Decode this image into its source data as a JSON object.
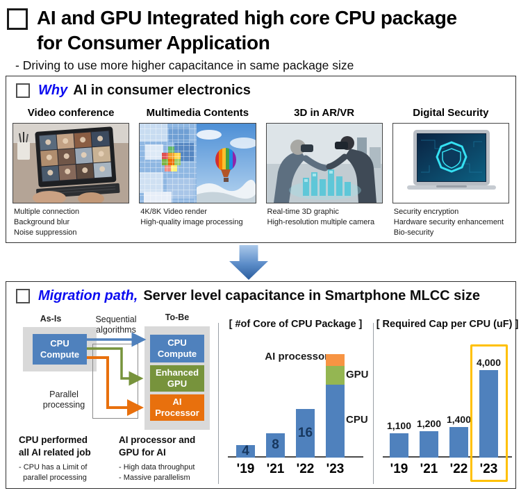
{
  "slide": {
    "title_lines": [
      "AI and GPU Integrated high core CPU package",
      "for Consumer Application"
    ],
    "subtitle": "- Driving to use more higher capacitance in same package size"
  },
  "colors": {
    "accent_blue": "#4f81bd",
    "accent_green": "#77933c",
    "accent_orange": "#e8700d",
    "chart_green": "#94b652",
    "chart_orange": "#f79443",
    "highlight_yellow": "#ffc000",
    "heading_blue": "#0b0bf0"
  },
  "why": {
    "heading_em": "Why",
    "heading_rest": "AI in consumer electronics",
    "columns": [
      {
        "title": "Video conference",
        "bullets": [
          "Multiple connection",
          "Background blur",
          "Noise suppression"
        ]
      },
      {
        "title": "Multimedia Contents",
        "bullets": [
          "4K/8K Video render",
          "High-quality image processing"
        ]
      },
      {
        "title": "3D in AR/VR",
        "bullets": [
          "Real-time 3D graphic",
          "High-resolution multiple camera"
        ]
      },
      {
        "title": "Digital Security",
        "bullets": [
          "Security encryption",
          "Hardware security enhancement",
          "Bio-security"
        ]
      }
    ]
  },
  "migration": {
    "heading_em": "Migration path,",
    "heading_rest": "Server level capacitance in Smartphone MLCC size",
    "diagram": {
      "as_is": "As-Is",
      "to_be": "To-Be",
      "sequential_lines": [
        "Sequential",
        "algorithms"
      ],
      "parallel_lines": [
        "Parallel",
        "processing"
      ],
      "as_is_box": {
        "label": "CPU Compute",
        "color": "#4f81bd"
      },
      "to_be_boxes": [
        {
          "label": "CPU Compute",
          "color": "#4f81bd"
        },
        {
          "label": "Enhanced GPU",
          "color": "#77933c"
        },
        {
          "label": "AI Processor",
          "color": "#e8700d"
        }
      ],
      "notes": [
        {
          "title_lines": [
            "CPU performed",
            "all AI related job"
          ],
          "bullet_lines": [
            "- CPU has a Limit of",
            "  parallel processing"
          ]
        },
        {
          "title_lines": [
            "AI processor and",
            "GPU for AI"
          ],
          "bullet_lines": [
            "- High data throughput",
            "- Massive parallelism"
          ]
        }
      ]
    }
  },
  "chart_data": [
    {
      "type": "bar",
      "stacked": true,
      "title": "[ #of Core of CPU Package ]",
      "categories": [
        "'19",
        "'21",
        "'22",
        "'23"
      ],
      "series": [
        {
          "name": "CPU",
          "color": "#4f81bd",
          "values": [
            4,
            8,
            16,
            24
          ]
        },
        {
          "name": "GPU",
          "color": "#94b652",
          "values": [
            0,
            0,
            0,
            6
          ]
        },
        {
          "name": "AI processor",
          "color": "#f79443",
          "values": [
            0,
            0,
            0,
            4
          ]
        }
      ],
      "bar_value_labels": [
        "4",
        "8",
        "16",
        ""
      ],
      "ylim": [
        0,
        36
      ],
      "legend_position": "annotations-beside-stacked-bar",
      "grid": false
    },
    {
      "type": "bar",
      "stacked": false,
      "title": "[ Required Cap per CPU (uF) ]",
      "categories": [
        "'19",
        "'21",
        "'22",
        "'23"
      ],
      "series": [
        {
          "color": "#4f81bd",
          "values": [
            1100,
            1200,
            1400,
            4000
          ]
        }
      ],
      "bar_value_labels": [
        "1,100",
        "1,200",
        "1,400",
        "4,000"
      ],
      "ylim": [
        0,
        5000
      ],
      "highlight": {
        "category": "'23",
        "color": "#ffc000"
      },
      "grid": false
    }
  ]
}
